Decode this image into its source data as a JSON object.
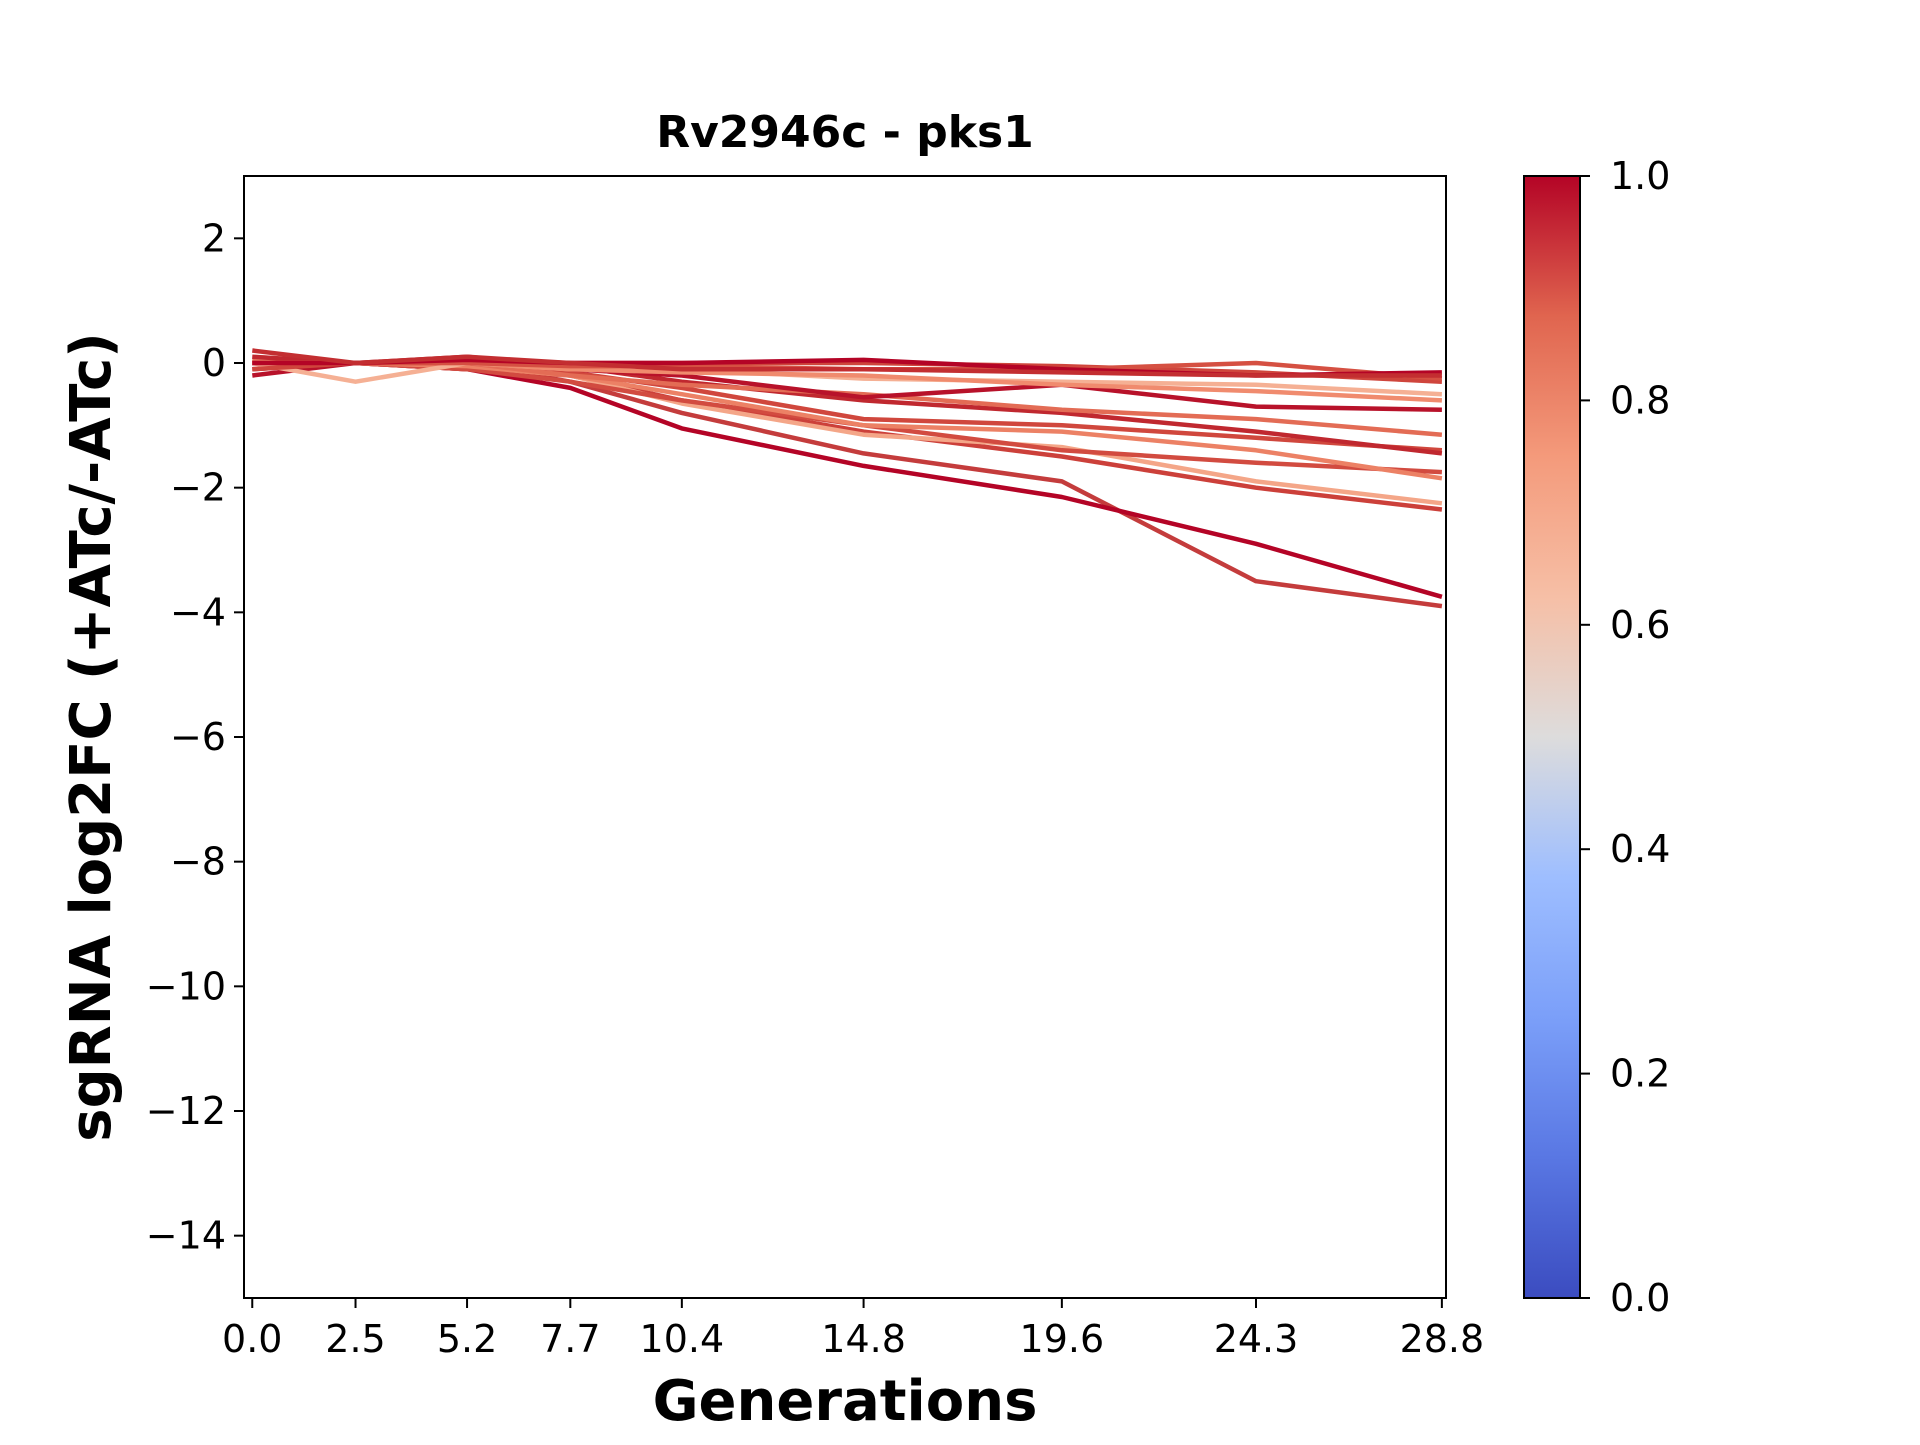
{
  "chart_data": {
    "type": "line",
    "title": "Rv2946c - pks1",
    "xlabel": "Generations",
    "ylabel": "sgRNA log2FC (+ATc/-ATc)",
    "x": [
      0.0,
      2.5,
      5.2,
      7.7,
      10.4,
      14.8,
      19.6,
      24.3,
      28.8
    ],
    "x_tick_labels": [
      "0.0",
      "2.5",
      "5.2",
      "7.7",
      "10.4",
      "14.8",
      "19.6",
      "24.3",
      "28.8"
    ],
    "xlim": [
      -0.2,
      28.9
    ],
    "ylim": [
      -15,
      3
    ],
    "y_ticks": [
      2,
      0,
      -2,
      -4,
      -6,
      -8,
      -10,
      -12,
      -14
    ],
    "y_tick_labels": [
      "2",
      "0",
      "−2",
      "−4",
      "−6",
      "−8",
      "−10",
      "−12",
      "−14"
    ],
    "grid": false,
    "colormap": "coolwarm",
    "colorbar": {
      "range": [
        0.0,
        1.0
      ],
      "ticks": [
        0.0,
        0.2,
        0.4,
        0.6,
        0.8,
        1.0
      ],
      "tick_labels": [
        "0.0",
        "0.2",
        "0.4",
        "0.6",
        "0.8",
        "1.0"
      ]
    },
    "series": [
      {
        "values": [
          0.0,
          0.0,
          0.0,
          -0.3,
          -0.8,
          -1.45,
          -1.9,
          -3.5,
          -3.9
        ],
        "color": "#c43c3c"
      },
      {
        "values": [
          -0.1,
          0.0,
          -0.1,
          -0.4,
          -1.05,
          -1.65,
          -2.15,
          -2.9,
          -3.75
        ],
        "color": "#b40426"
      },
      {
        "values": [
          0.0,
          0.0,
          -0.1,
          -0.2,
          -0.6,
          -1.1,
          -1.5,
          -2.0,
          -2.35
        ],
        "color": "#cc403a"
      },
      {
        "values": [
          0.1,
          0.0,
          -0.05,
          -0.2,
          -0.65,
          -1.15,
          -1.35,
          -1.9,
          -2.25
        ],
        "color": "#f4a688"
      },
      {
        "values": [
          0.0,
          0.0,
          -0.1,
          -0.3,
          -0.6,
          -1.0,
          -1.4,
          -1.6,
          -1.75
        ],
        "color": "#d24b40"
      },
      {
        "values": [
          0.05,
          0.0,
          -0.05,
          -0.2,
          -0.5,
          -1.0,
          -1.1,
          -1.4,
          -1.85
        ],
        "color": "#ec8165"
      },
      {
        "values": [
          0.0,
          0.0,
          0.0,
          -0.15,
          -0.4,
          -0.9,
          -1.0,
          -1.2,
          -1.4
        ],
        "color": "#d0473d"
      },
      {
        "values": [
          0.1,
          0.0,
          0.1,
          -0.05,
          -0.3,
          -0.6,
          -0.8,
          -1.1,
          -1.45
        ],
        "color": "#c0282f"
      },
      {
        "values": [
          0.0,
          0.0,
          0.0,
          -0.2,
          -0.35,
          -0.5,
          -0.75,
          -0.9,
          -1.15
        ],
        "color": "#e36c55"
      },
      {
        "values": [
          -0.2,
          0.0,
          0.0,
          -0.1,
          -0.2,
          -0.55,
          -0.35,
          -0.7,
          -0.75
        ],
        "color": "#b8122a"
      },
      {
        "values": [
          0.0,
          -0.3,
          0.0,
          -0.1,
          -0.1,
          -0.25,
          -0.3,
          -0.35,
          -0.5
        ],
        "color": "#f5b094"
      },
      {
        "values": [
          0.0,
          0.0,
          0.0,
          -0.1,
          -0.15,
          -0.2,
          -0.35,
          -0.45,
          -0.6
        ],
        "color": "#f08b6e"
      },
      {
        "values": [
          -0.1,
          0.0,
          0.05,
          0.0,
          0.0,
          0.0,
          -0.05,
          -0.15,
          -0.3
        ],
        "color": "#cf453c"
      },
      {
        "values": [
          0.0,
          0.0,
          0.0,
          -0.05,
          -0.05,
          -0.1,
          -0.1,
          0.0,
          -0.25
        ],
        "color": "#d55042"
      },
      {
        "values": [
          0.0,
          0.0,
          0.05,
          0.0,
          0.0,
          0.05,
          -0.1,
          -0.2,
          -0.15
        ],
        "color": "#b40426"
      },
      {
        "values": [
          0.2,
          0.0,
          0.1,
          0.0,
          -0.1,
          -0.1,
          -0.15,
          -0.2,
          -0.2
        ],
        "color": "#c32e31"
      }
    ]
  }
}
